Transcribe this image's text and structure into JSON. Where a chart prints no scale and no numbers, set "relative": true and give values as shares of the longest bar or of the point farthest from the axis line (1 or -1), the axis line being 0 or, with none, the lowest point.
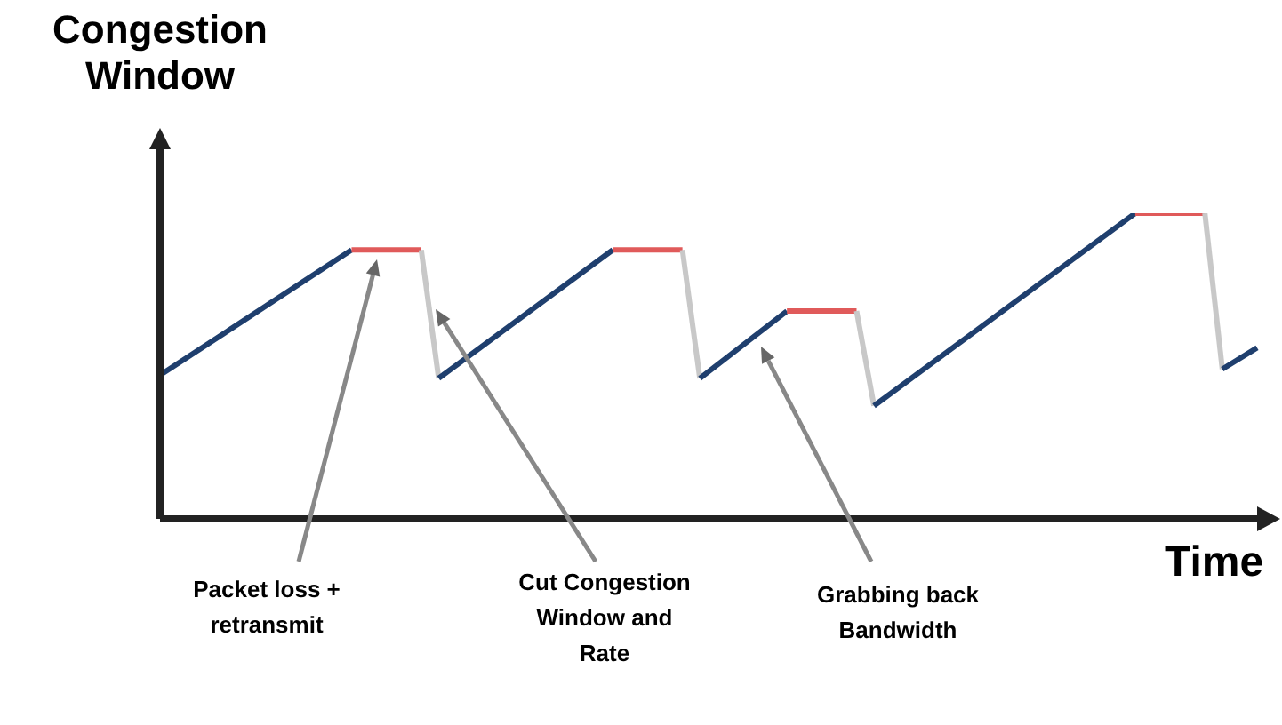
{
  "chart_data": {
    "type": "line",
    "relative": true,
    "xlabel": "Time",
    "ylabel": "Congestion Window",
    "annotations": [
      "Packet loss + retransmit",
      "Cut Congestion Window and Rate",
      "Grabbing back Bandwidth"
    ],
    "categories": [
      null,
      null,
      null,
      null,
      null,
      null,
      null,
      null,
      null,
      null,
      null,
      null,
      null,
      null,
      null,
      null,
      null,
      null,
      null,
      null,
      null,
      null,
      null,
      null,
      null,
      null,
      null,
      null,
      null,
      null,
      null,
      null,
      null,
      null,
      null,
      null,
      null,
      null,
      null,
      null,
      null,
      null,
      null,
      null,
      null,
      null,
      null,
      null,
      null,
      null,
      null,
      null,
      null,
      null,
      null,
      null,
      null,
      null,
      null,
      null,
      null,
      null,
      null,
      null
    ],
    "series": [
      {
        "color": "#1f3f6e",
        "values": [
          0.47,
          null,
          null,
          null,
          null,
          null,
          null,
          null,
          null,
          null,
          null,
          0.88,
          null,
          null,
          null,
          null,
          null,
          null,
          null,
          null,
          null,
          null,
          null,
          null,
          null,
          null,
          null,
          null,
          null,
          null,
          null,
          null,
          null,
          null,
          null,
          null,
          null,
          null,
          null,
          null,
          null,
          null,
          null,
          null,
          null,
          null,
          null,
          null,
          null,
          null,
          null,
          null,
          null,
          null,
          null,
          null,
          null,
          null,
          null,
          null,
          null,
          null,
          null,
          null
        ]
      },
      {
        "color": "#e05a5a",
        "values": [
          null,
          null,
          null,
          null,
          null,
          null,
          null,
          null,
          null,
          null,
          null,
          0.88,
          null,
          null,
          null,
          0.88,
          null,
          null,
          null,
          null,
          null,
          null,
          null,
          null,
          null,
          null,
          null,
          null,
          null,
          null,
          null,
          null,
          null,
          null,
          null,
          null,
          null,
          null,
          null,
          null,
          null,
          null,
          null,
          null,
          null,
          null,
          null,
          null,
          null,
          null,
          null,
          null,
          null,
          null,
          null,
          null,
          null,
          null,
          null,
          null,
          null,
          null,
          null,
          null
        ]
      },
      {
        "color": "#c8c8c8",
        "values": [
          null,
          null,
          null,
          null,
          null,
          null,
          null,
          null,
          null,
          null,
          null,
          null,
          null,
          null,
          null,
          0.88,
          0.46,
          null,
          null,
          null,
          null,
          null,
          null,
          null,
          null,
          null,
          null,
          null,
          null,
          null,
          null,
          null,
          null,
          null,
          null,
          null,
          null,
          null,
          null,
          null,
          null,
          null,
          null,
          null,
          null,
          null,
          null,
          null,
          null,
          null,
          null,
          null,
          null,
          null,
          null,
          null,
          null,
          null,
          null,
          null,
          null,
          null,
          null,
          null
        ]
      },
      {
        "color": "#1f3f6e",
        "values": [
          null,
          null,
          null,
          null,
          null,
          null,
          null,
          null,
          null,
          null,
          null,
          null,
          null,
          null,
          null,
          null,
          0.46,
          null,
          null,
          null,
          null,
          null,
          null,
          null,
          null,
          null,
          0.88,
          null,
          null,
          null,
          null,
          null,
          null,
          null,
          null,
          null,
          null,
          null,
          null,
          null,
          null,
          null,
          null,
          null,
          null,
          null,
          null,
          null,
          null,
          null,
          null,
          null,
          null,
          null,
          null,
          null,
          null,
          null,
          null,
          null,
          null,
          null,
          null,
          null
        ]
      },
      {
        "color": "#e05a5a",
        "values": [
          null,
          null,
          null,
          null,
          null,
          null,
          null,
          null,
          null,
          null,
          null,
          null,
          null,
          null,
          null,
          null,
          null,
          null,
          null,
          null,
          null,
          null,
          null,
          null,
          null,
          null,
          0.88,
          null,
          null,
          null,
          0.88,
          null,
          null,
          null,
          null,
          null,
          null,
          null,
          null,
          null,
          null,
          null,
          null,
          null,
          null,
          null,
          null,
          null,
          null,
          null,
          null,
          null,
          null,
          null,
          null,
          null,
          null,
          null,
          null,
          null,
          null,
          null,
          null,
          null
        ]
      },
      {
        "color": "#c8c8c8",
        "values": [
          null,
          null,
          null,
          null,
          null,
          null,
          null,
          null,
          null,
          null,
          null,
          null,
          null,
          null,
          null,
          null,
          null,
          null,
          null,
          null,
          null,
          null,
          null,
          null,
          null,
          null,
          null,
          null,
          null,
          null,
          0.88,
          0.46,
          null,
          null,
          null,
          null,
          null,
          null,
          null,
          null,
          null,
          null,
          null,
          null,
          null,
          null,
          null,
          null,
          null,
          null,
          null,
          null,
          null,
          null,
          null,
          null,
          null,
          null,
          null,
          null,
          null,
          null,
          null,
          null
        ]
      },
      {
        "color": "#1f3f6e",
        "values": [
          null,
          null,
          null,
          null,
          null,
          null,
          null,
          null,
          null,
          null,
          null,
          null,
          null,
          null,
          null,
          null,
          null,
          null,
          null,
          null,
          null,
          null,
          null,
          null,
          null,
          null,
          null,
          null,
          null,
          null,
          null,
          0.46,
          null,
          null,
          null,
          null,
          0.68,
          null,
          null,
          null,
          null,
          null,
          null,
          null,
          null,
          null,
          null,
          null,
          null,
          null,
          null,
          null,
          null,
          null,
          null,
          null,
          null,
          null,
          null,
          null,
          null,
          null,
          null,
          null
        ]
      },
      {
        "color": "#e05a5a",
        "values": [
          null,
          null,
          null,
          null,
          null,
          null,
          null,
          null,
          null,
          null,
          null,
          null,
          null,
          null,
          null,
          null,
          null,
          null,
          null,
          null,
          null,
          null,
          null,
          null,
          null,
          null,
          null,
          null,
          null,
          null,
          null,
          null,
          null,
          null,
          null,
          null,
          0.68,
          null,
          null,
          null,
          0.68,
          null,
          null,
          null,
          null,
          null,
          null,
          null,
          null,
          null,
          null,
          null,
          null,
          null,
          null,
          null,
          null,
          null,
          null,
          null,
          null,
          null,
          null,
          null
        ]
      },
      {
        "color": "#c8c8c8",
        "values": [
          null,
          null,
          null,
          null,
          null,
          null,
          null,
          null,
          null,
          null,
          null,
          null,
          null,
          null,
          null,
          null,
          null,
          null,
          null,
          null,
          null,
          null,
          null,
          null,
          null,
          null,
          null,
          null,
          null,
          null,
          null,
          null,
          null,
          null,
          null,
          null,
          null,
          null,
          null,
          null,
          0.68,
          0.37,
          null,
          null,
          null,
          null,
          null,
          null,
          null,
          null,
          null,
          null,
          null,
          null,
          null,
          null,
          null,
          null,
          null,
          null,
          null,
          null,
          null,
          null
        ]
      },
      {
        "color": "#1f3f6e",
        "values": [
          null,
          null,
          null,
          null,
          null,
          null,
          null,
          null,
          null,
          null,
          null,
          null,
          null,
          null,
          null,
          null,
          null,
          null,
          null,
          null,
          null,
          null,
          null,
          null,
          null,
          null,
          null,
          null,
          null,
          null,
          null,
          null,
          null,
          null,
          null,
          null,
          null,
          null,
          null,
          null,
          null,
          0.37,
          null,
          null,
          null,
          null,
          null,
          null,
          null,
          null,
          null,
          null,
          null,
          null,
          null,
          null,
          1,
          null,
          null,
          null,
          null,
          null,
          null,
          null
        ]
      },
      {
        "color": "#e05a5a",
        "values": [
          null,
          null,
          null,
          null,
          null,
          null,
          null,
          null,
          null,
          null,
          null,
          null,
          null,
          null,
          null,
          null,
          null,
          null,
          null,
          null,
          null,
          null,
          null,
          null,
          null,
          null,
          null,
          null,
          null,
          null,
          null,
          null,
          null,
          null,
          null,
          null,
          null,
          null,
          null,
          null,
          null,
          null,
          null,
          null,
          null,
          null,
          null,
          null,
          null,
          null,
          null,
          null,
          null,
          null,
          null,
          null,
          1,
          null,
          null,
          null,
          1,
          null,
          null,
          null
        ]
      },
      {
        "color": "#c8c8c8",
        "values": [
          null,
          null,
          null,
          null,
          null,
          null,
          null,
          null,
          null,
          null,
          null,
          null,
          null,
          null,
          null,
          null,
          null,
          null,
          null,
          null,
          null,
          null,
          null,
          null,
          null,
          null,
          null,
          null,
          null,
          null,
          null,
          null,
          null,
          null,
          null,
          null,
          null,
          null,
          null,
          null,
          null,
          null,
          null,
          null,
          null,
          null,
          null,
          null,
          null,
          null,
          null,
          null,
          null,
          null,
          null,
          null,
          null,
          null,
          null,
          null,
          1,
          0.49,
          null,
          null
        ]
      },
      {
        "color": "#1f3f6e",
        "values": [
          null,
          null,
          null,
          null,
          null,
          null,
          null,
          null,
          null,
          null,
          null,
          null,
          null,
          null,
          null,
          null,
          null,
          null,
          null,
          null,
          null,
          null,
          null,
          null,
          null,
          null,
          null,
          null,
          null,
          null,
          null,
          null,
          null,
          null,
          null,
          null,
          null,
          null,
          null,
          null,
          null,
          null,
          null,
          null,
          null,
          null,
          null,
          null,
          null,
          null,
          null,
          null,
          null,
          null,
          null,
          null,
          null,
          null,
          null,
          null,
          null,
          0.49,
          null,
          0.56
        ]
      }
    ]
  }
}
